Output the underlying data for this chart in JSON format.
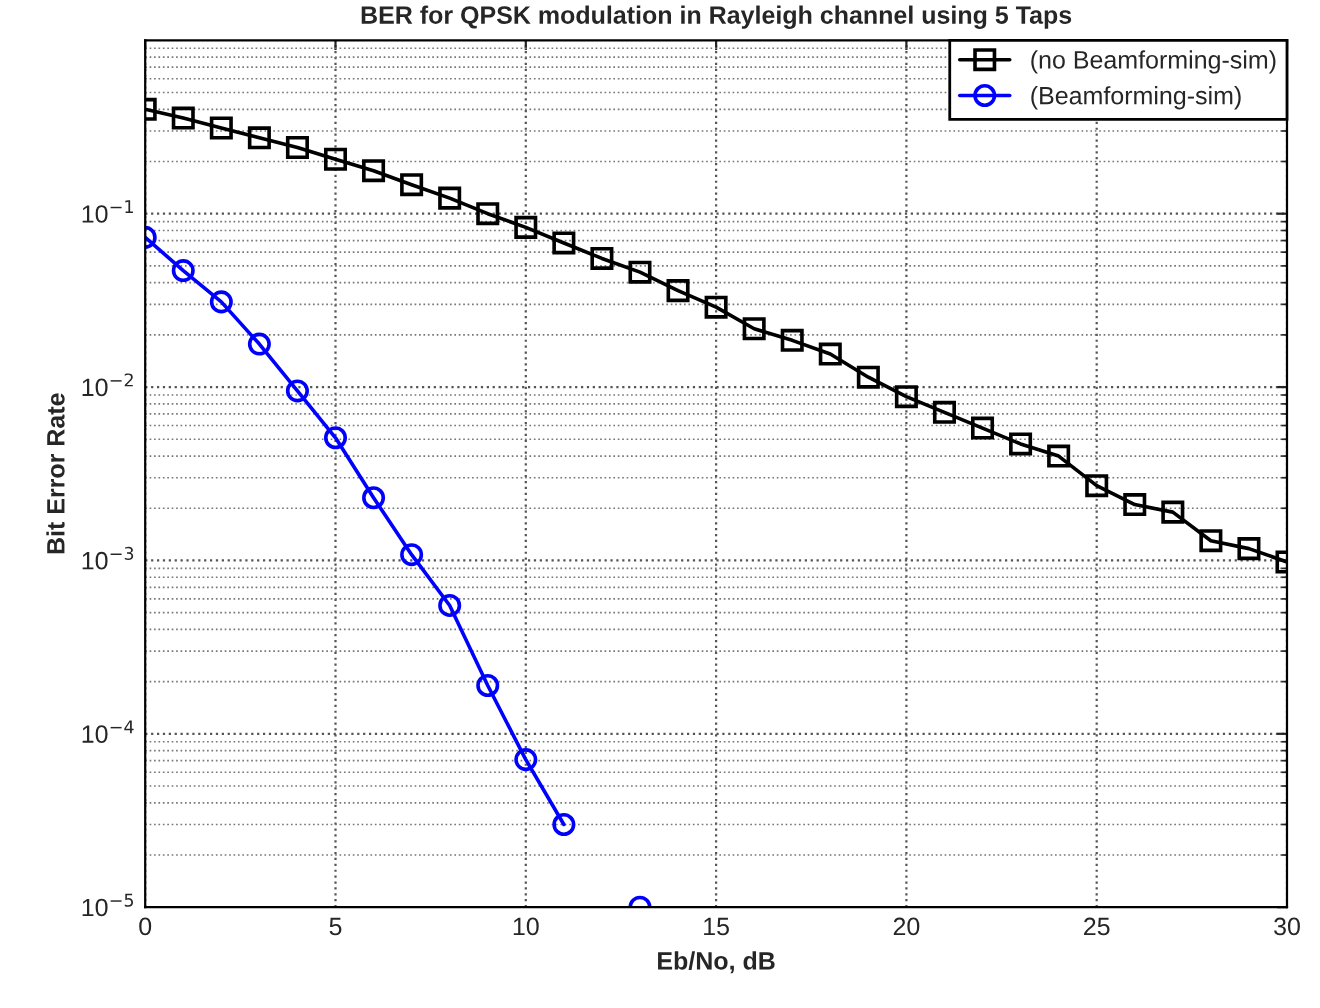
{
  "chart_data": {
    "type": "line",
    "title": "BER for QPSK modulation in Rayleigh channel using 5 Taps",
    "xlabel": "Eb/No, dB",
    "ylabel": "Bit Error Rate",
    "x": [
      0,
      1,
      2,
      3,
      4,
      5,
      6,
      7,
      8,
      9,
      10,
      11,
      12,
      13,
      14,
      15,
      16,
      17,
      18,
      19,
      20,
      21,
      22,
      23,
      24,
      25,
      26,
      27,
      28,
      29,
      30
    ],
    "series": [
      {
        "name": "(no Beamforming-sim)",
        "color": "#000000",
        "marker": "square",
        "values": [
          0.4,
          0.356,
          0.312,
          0.274,
          0.241,
          0.206,
          0.177,
          0.147,
          0.123,
          0.1,
          0.0834,
          0.0678,
          0.0552,
          0.046,
          0.036,
          0.0289,
          0.0217,
          0.0186,
          0.0155,
          0.0114,
          0.0088,
          0.00715,
          0.0058,
          0.0047,
          0.004,
          0.0027,
          0.0021,
          0.0019,
          0.0013,
          0.00117,
          0.00098
        ]
      },
      {
        "name": "(Beamforming-sim)",
        "color": "#0000ff",
        "marker": "circle",
        "values": [
          0.073,
          0.047,
          0.031,
          0.0177,
          0.0095,
          0.0051,
          0.0023,
          0.00108,
          0.00055,
          0.00019,
          7.1e-05,
          3e-05,
          null,
          1e-05,
          null,
          null,
          null,
          null,
          null,
          null,
          null,
          null,
          null,
          null,
          null,
          null,
          null,
          null,
          null,
          null,
          null
        ]
      }
    ],
    "log": "y",
    "xlim": [
      0,
      30
    ],
    "xticks": [
      0,
      5,
      10,
      15,
      20,
      25,
      30
    ],
    "ylim": [
      1e-05,
      1
    ],
    "yticks": [
      {
        "value": 1e-05,
        "label": "10$^{−5}$"
      },
      {
        "value": 0.0001,
        "label": "10$^{−4}$"
      },
      {
        "value": 0.001,
        "label": "10$^{−3}$"
      },
      {
        "value": 0.01,
        "label": "10$^{−2}$"
      },
      {
        "value": 0.1,
        "label": "10$^{−1}$"
      }
    ],
    "grid": true,
    "legend": "top right",
    "line_style": "solid"
  }
}
